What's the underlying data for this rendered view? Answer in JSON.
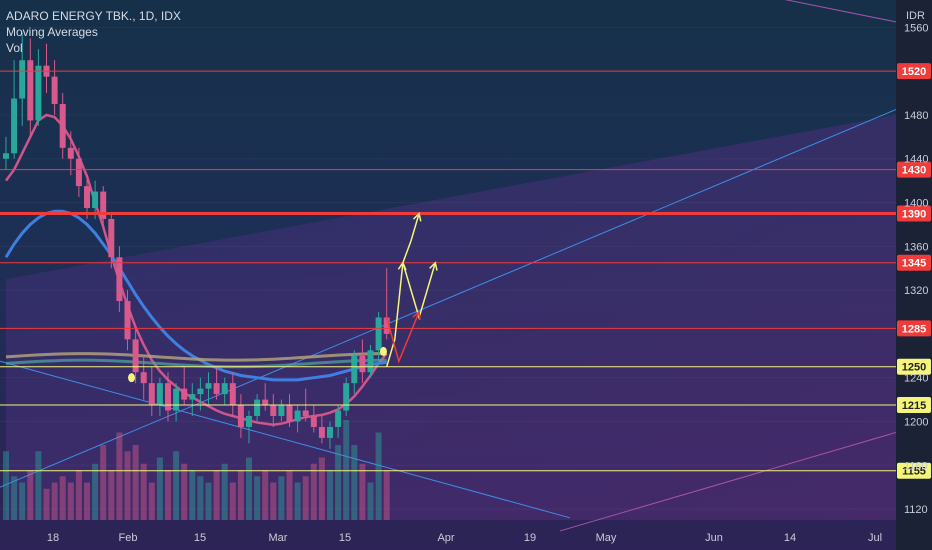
{
  "legend": {
    "symbol": "ADARO ENERGY TBK., 1D, IDX",
    "indicator_1": "Moving Averages",
    "indicator_2": "Vol"
  },
  "chart_data": {
    "type": "candlestick",
    "currency": "IDR",
    "y_range": [
      1110,
      1585
    ],
    "x_ticks": [
      "18",
      "Feb",
      "15",
      "Mar",
      "15",
      "Apr",
      "19",
      "May",
      "Jun",
      "14",
      "Jul"
    ],
    "y_ticks": [
      1560,
      1480,
      1440,
      1400,
      1360,
      1320,
      1240,
      1200,
      1160,
      1120
    ],
    "price_levels": [
      {
        "value": 1520,
        "label": "1520",
        "color": "#f03b3b"
      },
      {
        "value": 1430,
        "label": "1430",
        "color": "#f03b3b"
      },
      {
        "value": 1390,
        "label": "1390",
        "color": "#f03b3b"
      },
      {
        "value": 1345,
        "label": "1345",
        "color": "#f03b3b"
      },
      {
        "value": 1285,
        "label": "1285",
        "color": "#f03b3b"
      },
      {
        "value": 1250,
        "label": "1250",
        "color": "#f5f57a"
      },
      {
        "value": 1215,
        "label": "1215",
        "color": "#f5f57a"
      },
      {
        "value": 1155,
        "label": "1155",
        "color": "#f5f57a"
      }
    ],
    "candles": [
      {
        "o": 1440,
        "h": 1460,
        "l": 1430,
        "c": 1445
      },
      {
        "o": 1445,
        "h": 1530,
        "l": 1440,
        "c": 1495
      },
      {
        "o": 1495,
        "h": 1555,
        "l": 1470,
        "c": 1530
      },
      {
        "o": 1530,
        "h": 1550,
        "l": 1460,
        "c": 1475
      },
      {
        "o": 1475,
        "h": 1540,
        "l": 1470,
        "c": 1525
      },
      {
        "o": 1525,
        "h": 1545,
        "l": 1500,
        "c": 1515
      },
      {
        "o": 1515,
        "h": 1530,
        "l": 1480,
        "c": 1490
      },
      {
        "o": 1490,
        "h": 1500,
        "l": 1440,
        "c": 1450
      },
      {
        "o": 1450,
        "h": 1465,
        "l": 1425,
        "c": 1440
      },
      {
        "o": 1440,
        "h": 1450,
        "l": 1405,
        "c": 1415
      },
      {
        "o": 1415,
        "h": 1425,
        "l": 1385,
        "c": 1395
      },
      {
        "o": 1395,
        "h": 1420,
        "l": 1385,
        "c": 1410
      },
      {
        "o": 1410,
        "h": 1415,
        "l": 1375,
        "c": 1385
      },
      {
        "o": 1385,
        "h": 1390,
        "l": 1340,
        "c": 1350
      },
      {
        "o": 1350,
        "h": 1360,
        "l": 1300,
        "c": 1310
      },
      {
        "o": 1310,
        "h": 1320,
        "l": 1265,
        "c": 1275
      },
      {
        "o": 1275,
        "h": 1285,
        "l": 1235,
        "c": 1245
      },
      {
        "o": 1245,
        "h": 1260,
        "l": 1220,
        "c": 1235
      },
      {
        "o": 1235,
        "h": 1250,
        "l": 1205,
        "c": 1215
      },
      {
        "o": 1215,
        "h": 1240,
        "l": 1205,
        "c": 1235
      },
      {
        "o": 1235,
        "h": 1245,
        "l": 1200,
        "c": 1210
      },
      {
        "o": 1210,
        "h": 1235,
        "l": 1200,
        "c": 1230
      },
      {
        "o": 1230,
        "h": 1250,
        "l": 1215,
        "c": 1220
      },
      {
        "o": 1220,
        "h": 1235,
        "l": 1205,
        "c": 1225
      },
      {
        "o": 1225,
        "h": 1240,
        "l": 1210,
        "c": 1230
      },
      {
        "o": 1230,
        "h": 1245,
        "l": 1215,
        "c": 1235
      },
      {
        "o": 1235,
        "h": 1250,
        "l": 1220,
        "c": 1225
      },
      {
        "o": 1225,
        "h": 1240,
        "l": 1215,
        "c": 1235
      },
      {
        "o": 1235,
        "h": 1245,
        "l": 1205,
        "c": 1215
      },
      {
        "o": 1215,
        "h": 1225,
        "l": 1185,
        "c": 1195
      },
      {
        "o": 1195,
        "h": 1210,
        "l": 1180,
        "c": 1205
      },
      {
        "o": 1205,
        "h": 1225,
        "l": 1200,
        "c": 1220
      },
      {
        "o": 1220,
        "h": 1235,
        "l": 1210,
        "c": 1215
      },
      {
        "o": 1215,
        "h": 1225,
        "l": 1195,
        "c": 1205
      },
      {
        "o": 1205,
        "h": 1220,
        "l": 1200,
        "c": 1215
      },
      {
        "o": 1215,
        "h": 1225,
        "l": 1195,
        "c": 1200
      },
      {
        "o": 1200,
        "h": 1215,
        "l": 1190,
        "c": 1210
      },
      {
        "o": 1210,
        "h": 1230,
        "l": 1200,
        "c": 1205
      },
      {
        "o": 1205,
        "h": 1215,
        "l": 1190,
        "c": 1195
      },
      {
        "o": 1195,
        "h": 1205,
        "l": 1180,
        "c": 1185
      },
      {
        "o": 1185,
        "h": 1200,
        "l": 1175,
        "c": 1195
      },
      {
        "o": 1195,
        "h": 1215,
        "l": 1185,
        "c": 1210
      },
      {
        "o": 1210,
        "h": 1240,
        "l": 1205,
        "c": 1235
      },
      {
        "o": 1235,
        "h": 1265,
        "l": 1225,
        "c": 1260
      },
      {
        "o": 1260,
        "h": 1275,
        "l": 1235,
        "c": 1245
      },
      {
        "o": 1245,
        "h": 1270,
        "l": 1240,
        "c": 1265
      },
      {
        "o": 1265,
        "h": 1300,
        "l": 1255,
        "c": 1295
      },
      {
        "o": 1295,
        "h": 1340,
        "l": 1275,
        "c": 1280
      }
    ],
    "volume": [
      55,
      35,
      30,
      40,
      55,
      25,
      30,
      35,
      30,
      40,
      30,
      45,
      60,
      40,
      70,
      55,
      60,
      45,
      30,
      50,
      40,
      55,
      45,
      40,
      35,
      30,
      40,
      45,
      30,
      40,
      50,
      35,
      40,
      30,
      35,
      40,
      30,
      35,
      45,
      50,
      40,
      60,
      80,
      60,
      45,
      30,
      70,
      40
    ],
    "moving_averages": [
      {
        "name": "MA short",
        "color": "#d0558a",
        "values": [
          1420,
          1430,
          1445,
          1460,
          1475,
          1480,
          1478,
          1470,
          1458,
          1442,
          1424,
          1400,
          1378,
          1352,
          1328,
          1306,
          1286,
          1270,
          1256,
          1246,
          1238,
          1232,
          1226,
          1222,
          1218,
          1214,
          1210,
          1207,
          1205,
          1203,
          1201,
          1199,
          1198,
          1197,
          1198,
          1200,
          1202,
          1204,
          1205,
          1206,
          1208,
          1211,
          1216,
          1223,
          1232,
          1242,
          1253,
          1262
        ]
      },
      {
        "name": "MA long",
        "color": "#3f7fe0",
        "values": [
          1350,
          1362,
          1372,
          1380,
          1386,
          1390,
          1392,
          1392,
          1390,
          1386,
          1380,
          1372,
          1362,
          1352,
          1340,
          1328,
          1316,
          1305,
          1295,
          1286,
          1278,
          1271,
          1265,
          1260,
          1256,
          1252,
          1249,
          1246,
          1244,
          1242,
          1241,
          1240,
          1239,
          1238,
          1238,
          1238,
          1238,
          1239,
          1240,
          1241,
          1242,
          1244,
          1246,
          1248,
          1250,
          1252,
          1253,
          1254
        ]
      }
    ],
    "projection_arrows": [
      {
        "color": "#f5f57a",
        "points": [
          [
            47,
            1250
          ],
          [
            48,
            1275
          ],
          [
            49,
            1345
          ]
        ]
      },
      {
        "color": "#f5f57a",
        "points": [
          [
            49,
            1345
          ],
          [
            51,
            1295
          ],
          [
            53,
            1345
          ]
        ]
      },
      {
        "color": "#f5f57a",
        "points": [
          [
            49,
            1345
          ],
          [
            50,
            1365
          ],
          [
            51,
            1390
          ]
        ]
      },
      {
        "color": "#f03b3b",
        "points": [
          [
            47,
            1295
          ],
          [
            48.5,
            1255
          ],
          [
            51,
            1300
          ]
        ]
      }
    ]
  },
  "colors": {
    "up": "#2aa79b",
    "down": "#d85a8c",
    "bg_top": "#17304a",
    "bg_bottom": "#2a2150",
    "axis_text": "#c8cdd8"
  }
}
